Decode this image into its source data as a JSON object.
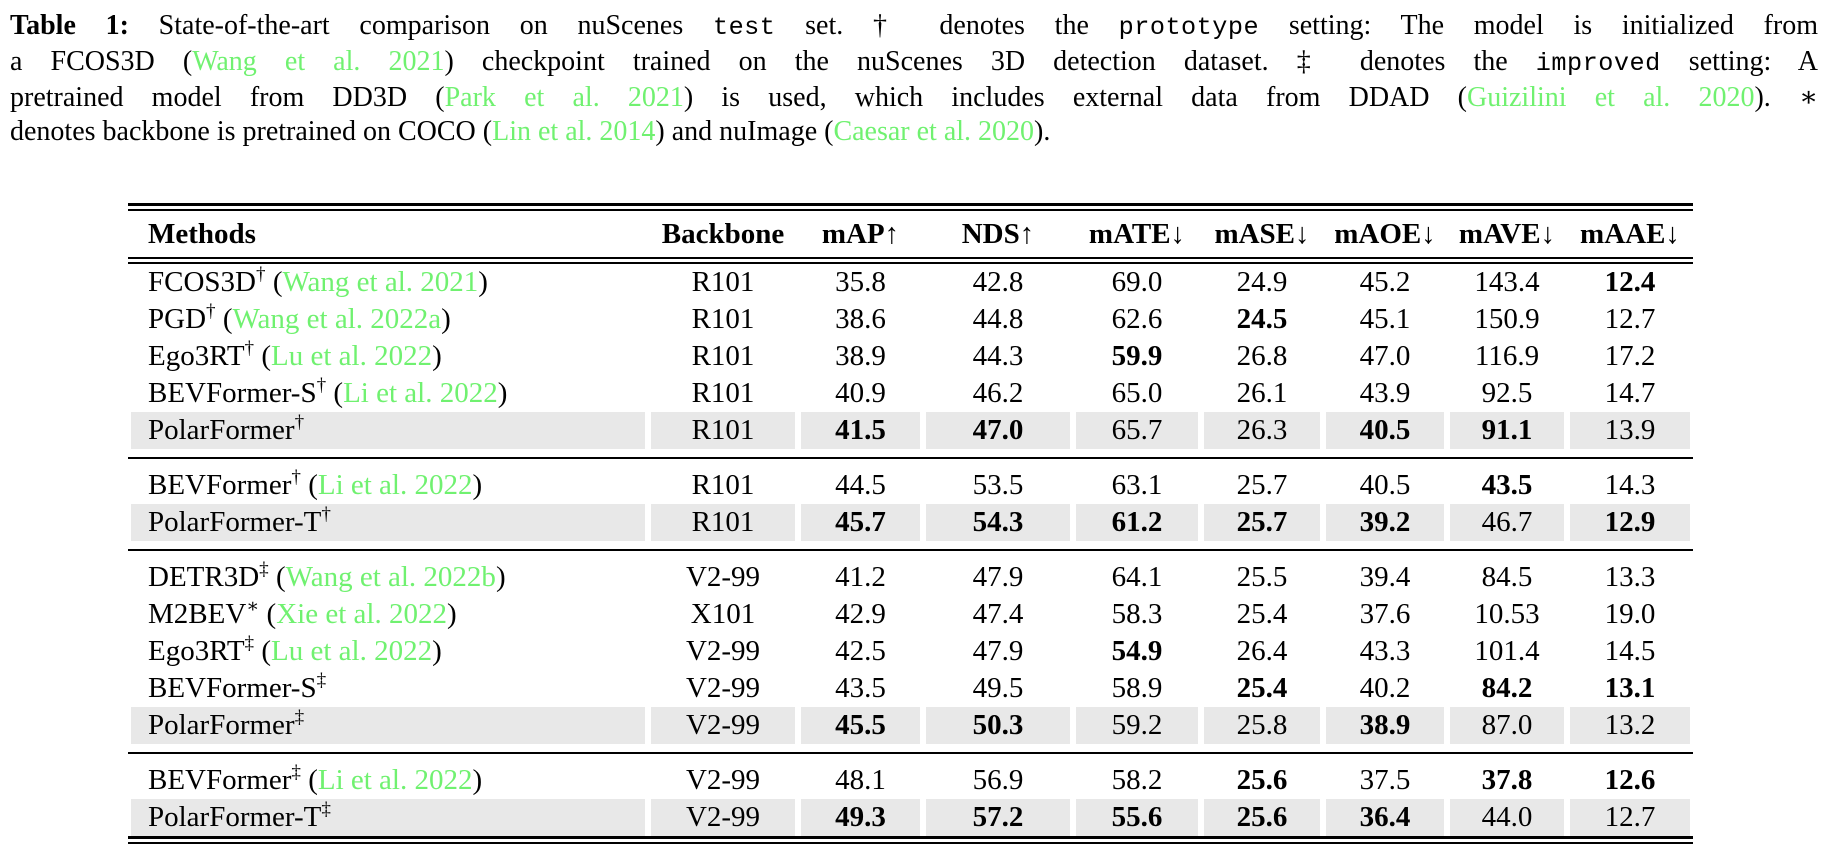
{
  "colors": {
    "citation_green": "#70F170",
    "highlight_gray": "#E8E8E8",
    "text_black": "#000000"
  },
  "caption": {
    "label": "Table 1:",
    "lines": [
      [
        {
          "t": "Table 1:",
          "s": "bold"
        },
        {
          "t": " State-of-the-art comparison on nuScenes ",
          "s": "normal"
        },
        {
          "t": "test",
          "s": "mono"
        },
        {
          "t": " set. † denotes the ",
          "s": "normal"
        },
        {
          "t": "prototype",
          "s": "mono"
        },
        {
          "t": " setting: The model is initialized from",
          "s": "normal"
        }
      ],
      [
        {
          "t": "a FCOS3D (",
          "s": "normal"
        },
        {
          "t": "Wang et al. 2021",
          "s": "green"
        },
        {
          "t": ") checkpoint trained on the nuScenes 3D detection dataset. ‡ denotes the ",
          "s": "normal"
        },
        {
          "t": "improved",
          "s": "mono"
        },
        {
          "t": " setting: A",
          "s": "normal"
        }
      ],
      [
        {
          "t": "pretrained model from DD3D (",
          "s": "normal"
        },
        {
          "t": "Park et al. 2021",
          "s": "green"
        },
        {
          "t": ") is used, which includes external data from DDAD (",
          "s": "normal"
        },
        {
          "t": "Guizilini et al. 2020",
          "s": "green"
        },
        {
          "t": "). ∗",
          "s": "normal"
        }
      ],
      [
        {
          "t": "denotes backbone is pretrained on COCO (",
          "s": "normal"
        },
        {
          "t": "Lin et al. 2014",
          "s": "green"
        },
        {
          "t": ") and nuImage (",
          "s": "normal"
        },
        {
          "t": "Caesar et al. 2020",
          "s": "green"
        },
        {
          "t": ").",
          "s": "normal"
        }
      ]
    ]
  },
  "table": {
    "headers": [
      "Methods",
      "Backbone",
      "mAP↑",
      "NDS↑",
      "mATE↓",
      "mASE↓",
      "mAOE↓",
      "mAVE↓",
      "mAAE↓"
    ],
    "groups": [
      {
        "rows": [
          {
            "method": "FCOS3D",
            "sup": "†",
            "cite": "Wang et al. 2021",
            "highlight": false,
            "cells": [
              {
                "v": "R101"
              },
              {
                "v": "35.8"
              },
              {
                "v": "42.8"
              },
              {
                "v": "69.0"
              },
              {
                "v": "24.9"
              },
              {
                "v": "45.2"
              },
              {
                "v": "143.4"
              },
              {
                "v": "12.4",
                "b": true
              }
            ]
          },
          {
            "method": "PGD",
            "sup": "†",
            "cite": "Wang et al. 2022a",
            "highlight": false,
            "cells": [
              {
                "v": "R101"
              },
              {
                "v": "38.6"
              },
              {
                "v": "44.8"
              },
              {
                "v": "62.6"
              },
              {
                "v": "24.5",
                "b": true
              },
              {
                "v": "45.1"
              },
              {
                "v": "150.9"
              },
              {
                "v": "12.7"
              }
            ]
          },
          {
            "method": "Ego3RT",
            "sup": "†",
            "cite": "Lu et al. 2022",
            "highlight": false,
            "cells": [
              {
                "v": "R101"
              },
              {
                "v": "38.9"
              },
              {
                "v": "44.3"
              },
              {
                "v": "59.9",
                "b": true
              },
              {
                "v": "26.8"
              },
              {
                "v": "47.0"
              },
              {
                "v": "116.9"
              },
              {
                "v": "17.2"
              }
            ]
          },
          {
            "method": "BEVFormer-S",
            "sup": "†",
            "cite": "Li et al. 2022",
            "highlight": false,
            "cells": [
              {
                "v": "R101"
              },
              {
                "v": "40.9"
              },
              {
                "v": "46.2"
              },
              {
                "v": "65.0"
              },
              {
                "v": "26.1"
              },
              {
                "v": "43.9"
              },
              {
                "v": "92.5"
              },
              {
                "v": "14.7"
              }
            ]
          },
          {
            "method": "PolarFormer",
            "sup": "†",
            "cite": null,
            "highlight": true,
            "cells": [
              {
                "v": "R101"
              },
              {
                "v": "41.5",
                "b": true
              },
              {
                "v": "47.0",
                "b": true
              },
              {
                "v": "65.7"
              },
              {
                "v": "26.3"
              },
              {
                "v": "40.5",
                "b": true
              },
              {
                "v": "91.1",
                "b": true
              },
              {
                "v": "13.9"
              }
            ]
          }
        ]
      },
      {
        "rows": [
          {
            "method": "BEVFormer",
            "sup": "†",
            "cite": "Li et al. 2022",
            "highlight": false,
            "cells": [
              {
                "v": "R101"
              },
              {
                "v": "44.5"
              },
              {
                "v": "53.5"
              },
              {
                "v": "63.1"
              },
              {
                "v": "25.7"
              },
              {
                "v": "40.5"
              },
              {
                "v": "43.5",
                "b": true
              },
              {
                "v": "14.3"
              }
            ]
          },
          {
            "method": "PolarFormer-T",
            "sup": "†",
            "cite": null,
            "highlight": true,
            "cells": [
              {
                "v": "R101"
              },
              {
                "v": "45.7",
                "b": true
              },
              {
                "v": "54.3",
                "b": true
              },
              {
                "v": "61.2",
                "b": true
              },
              {
                "v": "25.7",
                "b": true
              },
              {
                "v": "39.2",
                "b": true
              },
              {
                "v": "46.7"
              },
              {
                "v": "12.9",
                "b": true
              }
            ]
          }
        ]
      },
      {
        "rows": [
          {
            "method": "DETR3D",
            "sup": "‡",
            "cite": "Wang et al. 2022b",
            "highlight": false,
            "cells": [
              {
                "v": "V2-99"
              },
              {
                "v": "41.2"
              },
              {
                "v": "47.9"
              },
              {
                "v": "64.1"
              },
              {
                "v": "25.5"
              },
              {
                "v": "39.4"
              },
              {
                "v": "84.5"
              },
              {
                "v": "13.3"
              }
            ]
          },
          {
            "method": "M2BEV",
            "sup": "∗",
            "cite": "Xie et al. 2022",
            "highlight": false,
            "cells": [
              {
                "v": "X101"
              },
              {
                "v": "42.9"
              },
              {
                "v": "47.4"
              },
              {
                "v": "58.3"
              },
              {
                "v": "25.4"
              },
              {
                "v": "37.6"
              },
              {
                "v": "10.53"
              },
              {
                "v": "19.0"
              }
            ]
          },
          {
            "method": "Ego3RT",
            "sup": "‡",
            "cite": "Lu et al. 2022",
            "highlight": false,
            "cells": [
              {
                "v": "V2-99"
              },
              {
                "v": "42.5"
              },
              {
                "v": "47.9"
              },
              {
                "v": "54.9",
                "b": true
              },
              {
                "v": "26.4"
              },
              {
                "v": "43.3"
              },
              {
                "v": "101.4"
              },
              {
                "v": "14.5"
              }
            ]
          },
          {
            "method": "BEVFormer-S",
            "sup": "‡",
            "cite": null,
            "highlight": false,
            "cells": [
              {
                "v": "V2-99"
              },
              {
                "v": "43.5"
              },
              {
                "v": "49.5"
              },
              {
                "v": "58.9"
              },
              {
                "v": "25.4",
                "b": true
              },
              {
                "v": "40.2"
              },
              {
                "v": "84.2",
                "b": true
              },
              {
                "v": "13.1",
                "b": true
              }
            ]
          },
          {
            "method": "PolarFormer",
            "sup": "‡",
            "cite": null,
            "highlight": true,
            "cells": [
              {
                "v": "V2-99"
              },
              {
                "v": "45.5",
                "b": true
              },
              {
                "v": "50.3",
                "b": true
              },
              {
                "v": "59.2"
              },
              {
                "v": "25.8"
              },
              {
                "v": "38.9",
                "b": true
              },
              {
                "v": "87.0"
              },
              {
                "v": "13.2"
              }
            ]
          }
        ]
      },
      {
        "rows": [
          {
            "method": "BEVFormer",
            "sup": "‡",
            "cite": "Li et al. 2022",
            "highlight": false,
            "cells": [
              {
                "v": "V2-99"
              },
              {
                "v": "48.1"
              },
              {
                "v": "56.9"
              },
              {
                "v": "58.2"
              },
              {
                "v": "25.6",
                "b": true
              },
              {
                "v": "37.5"
              },
              {
                "v": "37.8",
                "b": true
              },
              {
                "v": "12.6",
                "b": true
              }
            ]
          },
          {
            "method": "PolarFormer-T",
            "sup": "‡",
            "cite": null,
            "highlight": true,
            "cells": [
              {
                "v": "V2-99"
              },
              {
                "v": "49.3",
                "b": true
              },
              {
                "v": "57.2",
                "b": true
              },
              {
                "v": "55.6",
                "b": true
              },
              {
                "v": "25.6",
                "b": true
              },
              {
                "v": "36.4",
                "b": true
              },
              {
                "v": "44.0"
              },
              {
                "v": "12.7"
              }
            ]
          }
        ]
      }
    ]
  }
}
